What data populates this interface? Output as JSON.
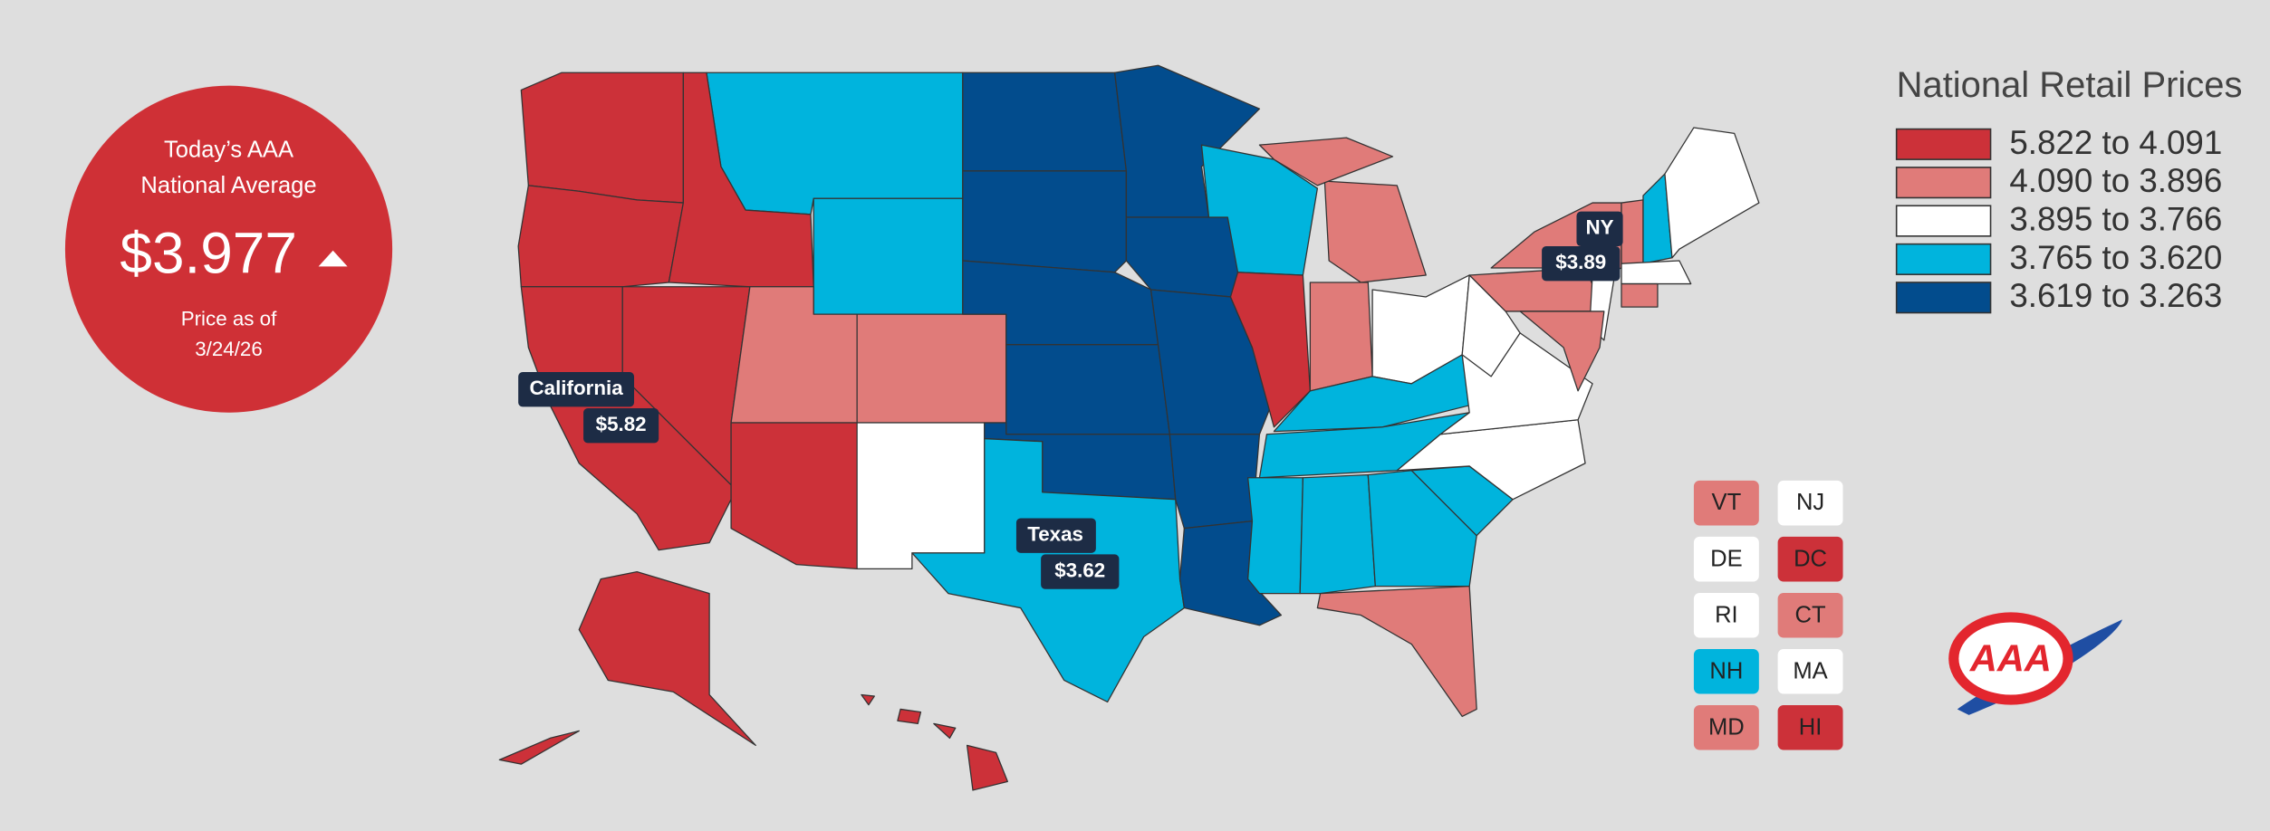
{
  "badge": {
    "title_lines": [
      "Today’s AAA",
      "National Average"
    ],
    "price": "$3.977",
    "date_lines": [
      "Price as of",
      "3/24/26"
    ]
  },
  "legend": {
    "title": "National Retail Prices",
    "items": [
      {
        "label": "5.822 to 4.091",
        "color": "#cc3139"
      },
      {
        "label": "4.090 to 3.896",
        "color": "#e07b79"
      },
      {
        "label": "3.895 to 3.766",
        "color": "#ffffff"
      },
      {
        "label": "3.765 to 3.620",
        "color": "#00b4dd"
      },
      {
        "label": "3.619 to 3.263",
        "color": "#024c8d"
      }
    ]
  },
  "callouts": [
    {
      "name": "California",
      "price": "$5.82"
    },
    {
      "name": "Texas",
      "price": "$3.62"
    },
    {
      "name": "NY",
      "price": "$3.89"
    }
  ],
  "small_states": [
    {
      "label": "VT",
      "color": "#e07b79"
    },
    {
      "label": "NJ",
      "color": "#ffffff"
    },
    {
      "label": "DE",
      "color": "#ffffff"
    },
    {
      "label": "DC",
      "color": "#cc3139"
    },
    {
      "label": "RI",
      "color": "#ffffff"
    },
    {
      "label": "CT",
      "color": "#e07b79"
    },
    {
      "label": "NH",
      "color": "#00b4dd"
    },
    {
      "label": "MA",
      "color": "#ffffff"
    },
    {
      "label": "MD",
      "color": "#e07b79"
    },
    {
      "label": "HI",
      "color": "#cc3139"
    }
  ],
  "logo": "AAA"
}
